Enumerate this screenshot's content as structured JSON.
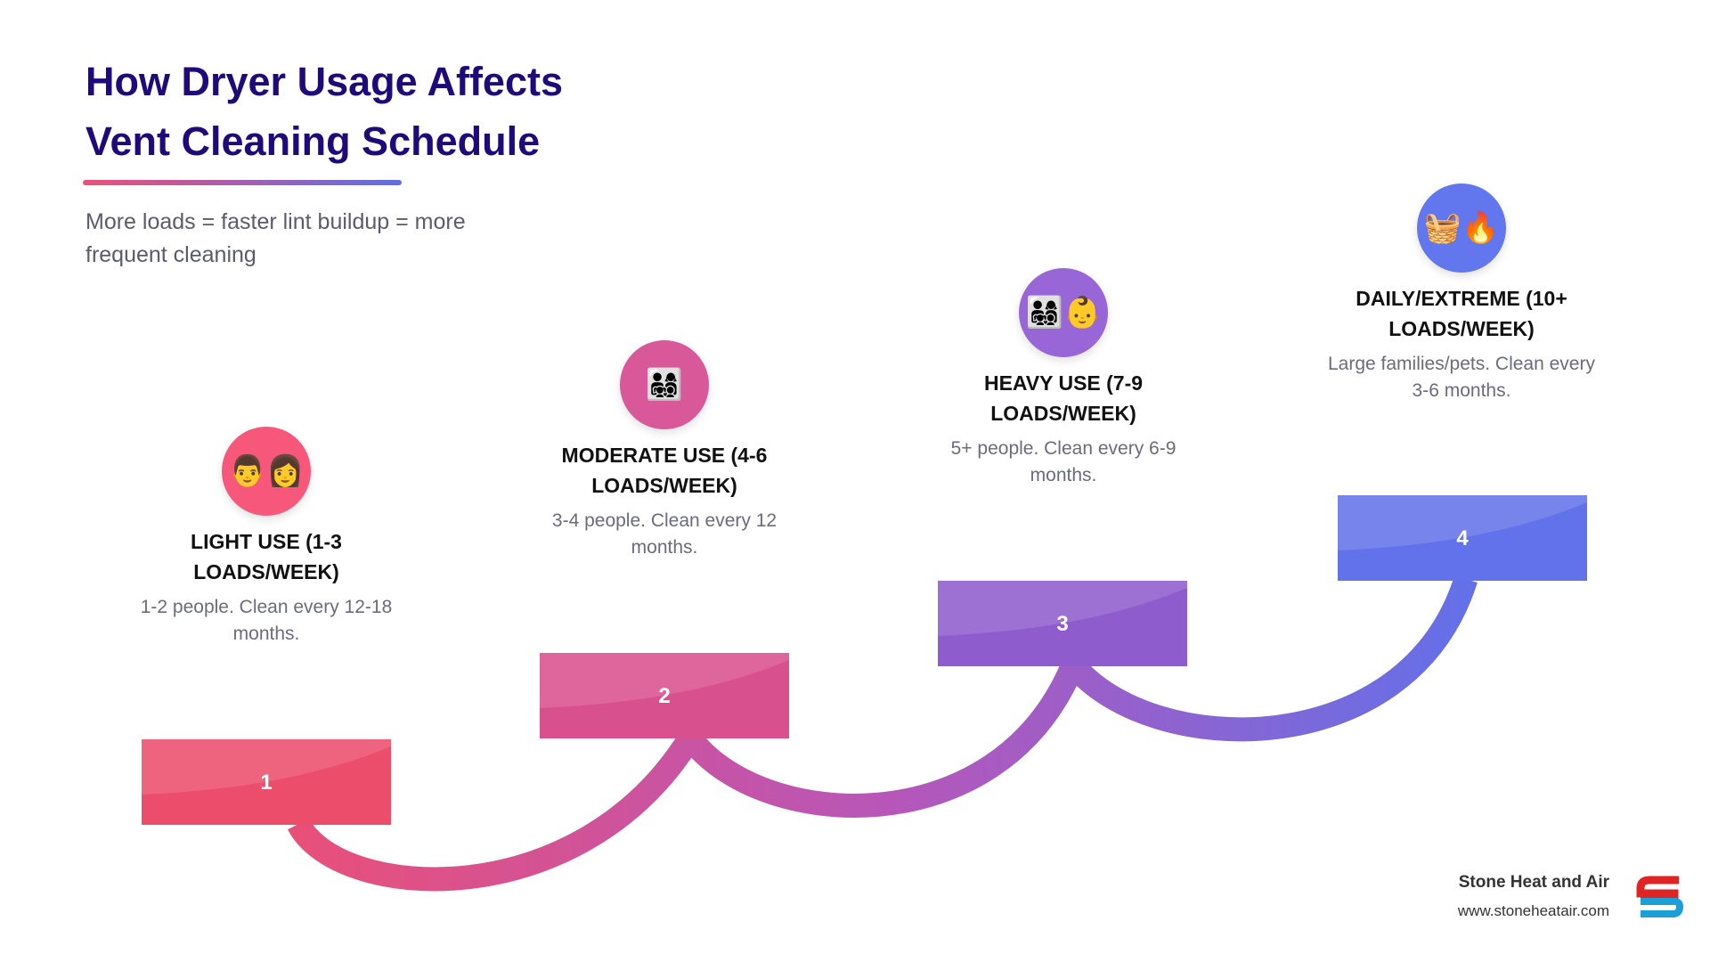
{
  "header": {
    "title": "How Dryer Usage Affects Vent Cleaning Schedule",
    "subtitle": "More loads = faster lint buildup = more frequent cleaning"
  },
  "steps": [
    {
      "number": "1",
      "icon": "👨👩",
      "title": "LIGHT USE (1-3 LOADS/WEEK)",
      "description": "1-2 people. Clean every 12-18 months."
    },
    {
      "number": "2",
      "icon": "👨‍👩‍👧‍👦",
      "title": "MODERATE USE (4-6 LOADS/WEEK)",
      "description": "3-4 people. Clean every 12 months."
    },
    {
      "number": "3",
      "icon": "👨‍👩‍👧‍👦👶",
      "title": "HEAVY USE (7-9 LOADS/WEEK)",
      "description": "5+ people. Clean every 6-9 months."
    },
    {
      "number": "4",
      "icon": "🧺🔥",
      "title": "DAILY/EXTREME (10+ LOADS/WEEK)",
      "description": "Large families/pets. Clean every 3-6 months."
    }
  ],
  "footer": {
    "company": "Stone Heat and Air",
    "url": "www.stoneheatair.com"
  }
}
